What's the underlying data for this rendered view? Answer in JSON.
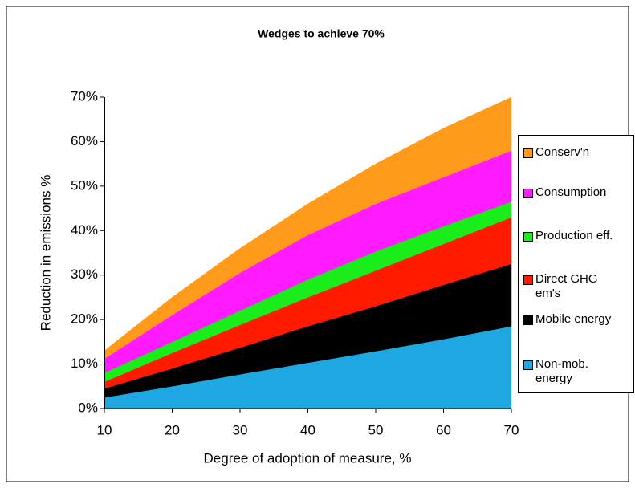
{
  "chart_data": {
    "type": "stacked-area",
    "title": "Wedges to achieve 70%",
    "x_label": "Degree of adoption of measure, %",
    "y_label": "Reduction in emissions %",
    "x": [
      10,
      20,
      30,
      40,
      50,
      60,
      70
    ],
    "xlim": [
      10,
      70
    ],
    "xticks": [
      10,
      20,
      30,
      40,
      50,
      60,
      70
    ],
    "ylim": [
      0,
      70
    ],
    "yticks": [
      {
        "value": 0,
        "label": "0%"
      },
      {
        "value": 10,
        "label": "10%"
      },
      {
        "value": 20,
        "label": "20%"
      },
      {
        "value": 30,
        "label": "30%"
      },
      {
        "value": 40,
        "label": "40%"
      },
      {
        "value": 50,
        "label": "50%"
      },
      {
        "value": 60,
        "label": "60%"
      },
      {
        "value": 70,
        "label": "70%"
      }
    ],
    "legend": "right",
    "series": [
      {
        "name": "Non-mob. energy",
        "color": "#1ea7e1",
        "values": [
          2.5,
          5,
          7.7,
          10.3,
          12.9,
          15.6,
          18.5
        ]
      },
      {
        "name": "Mobile energy",
        "color": "#000000",
        "values": [
          2,
          4,
          6,
          8.2,
          10.1,
          12.2,
          14
        ]
      },
      {
        "name": "Direct GHG em's",
        "color": "#ff1a00",
        "values": [
          1.5,
          3.5,
          5.1,
          6.5,
          8,
          9.2,
          10.5
        ]
      },
      {
        "name": "Production eff.",
        "color": "#1aee1a",
        "values": [
          2,
          2.5,
          3.2,
          4,
          4.3,
          4,
          3.5
        ]
      },
      {
        "name": "Consumption",
        "color": "#ff1aff",
        "values": [
          3.2,
          6,
          8.5,
          10,
          10.7,
          11,
          11.5
        ]
      },
      {
        "name": "Conserv'n",
        "color": "#ff9a1a",
        "values": [
          1.8,
          4,
          5.5,
          7,
          9,
          11,
          12
        ]
      }
    ]
  }
}
